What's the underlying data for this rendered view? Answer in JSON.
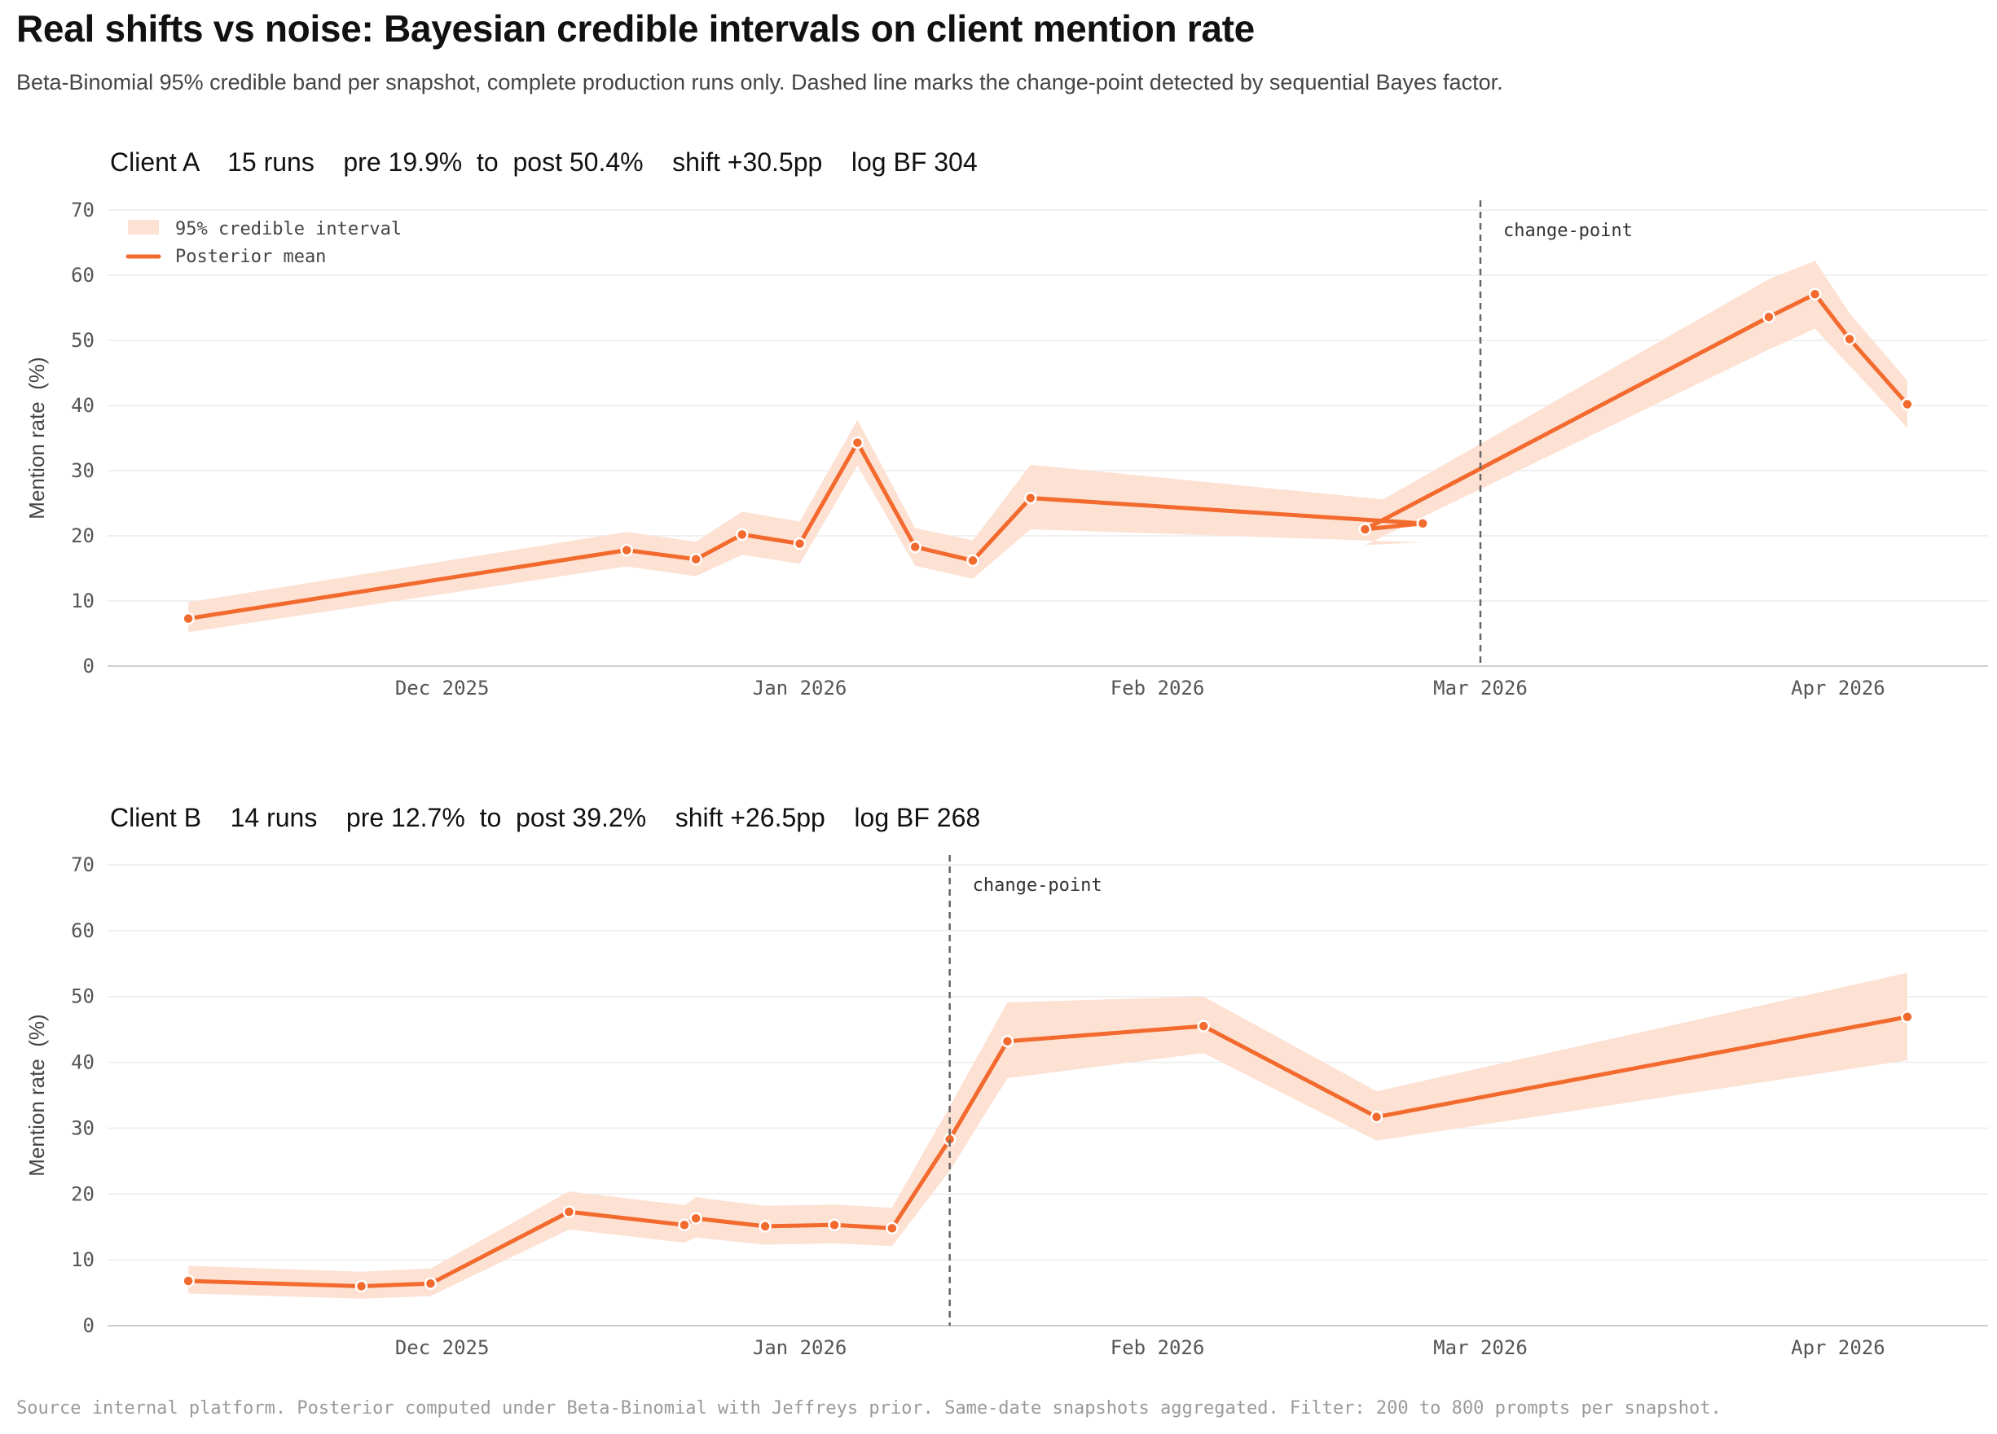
{
  "title": "Real shifts vs noise: Bayesian credible intervals on client mention rate",
  "subtitle": "Beta-Binomial 95% credible band per snapshot, complete production runs only. Dashed line marks the change-point detected by sequential Bayes factor.",
  "source": "Source  internal platform. Posterior computed under Beta-Binomial with Jeffreys prior. Same-date snapshots aggregated. Filter: 200 to 800 prompts per snapshot.",
  "colors": {
    "line": "#F26A2E",
    "band": "#FDE1D3",
    "grid": "#ECECEC",
    "changepoint": "#666666"
  },
  "chart_data": [
    {
      "type": "line",
      "title": "Client A    15 runs    pre 19.9%  to  post 50.4%    shift +30.5pp    log BF 304",
      "ylabel": "Mention rate  (%)",
      "xlabel": "",
      "ylim": [
        0,
        70
      ],
      "yticks": [
        0,
        10,
        20,
        30,
        40,
        50,
        60,
        70
      ],
      "xtick_labels": [
        {
          "date": "2025-12-01",
          "label": "Dec 2025"
        },
        {
          "date": "2026-01-01",
          "label": "Jan 2026"
        },
        {
          "date": "2026-02-01",
          "label": "Feb 2026"
        },
        {
          "date": "2026-03-01",
          "label": "Mar 2026"
        },
        {
          "date": "2026-04-01",
          "label": "Apr 2026"
        }
      ],
      "xlim": [
        "2025-11-02",
        "2026-04-14"
      ],
      "grid": true,
      "legend": {
        "position": "top-left",
        "band_label": "95% credible interval",
        "line_label": "Posterior mean"
      },
      "changepoint": {
        "date": "2026-03-01",
        "label": "change-point"
      },
      "series": [
        {
          "x": [
            "2025-11-09",
            "2025-12-17",
            "2025-12-23",
            "2025-12-27",
            "2026-01-01",
            "2026-01-06",
            "2026-01-11",
            "2026-01-16",
            "2026-01-21",
            "2026-02-24",
            "2026-02-19",
            "2026-03-26",
            "2026-03-30",
            "2026-04-02",
            "2026-04-07"
          ],
          "mean": [
            7.3,
            17.8,
            16.4,
            20.2,
            18.8,
            34.3,
            18.3,
            16.2,
            25.8,
            21.9,
            21.0,
            53.6,
            57.1,
            50.2,
            40.2
          ],
          "lower": [
            5.2,
            15.3,
            13.8,
            17.1,
            15.7,
            30.8,
            15.4,
            13.4,
            21.0,
            19.0,
            18.6,
            48.6,
            51.8,
            46.1,
            36.6
          ],
          "upper": [
            9.8,
            20.6,
            19.1,
            23.7,
            22.2,
            37.8,
            21.2,
            19.3,
            30.9,
            25.0,
            24.0,
            59.4,
            62.2,
            54.2,
            43.8
          ]
        }
      ]
    },
    {
      "type": "line",
      "title": "Client B    14 runs    pre 12.7%  to  post 39.2%    shift +26.5pp    log BF 268",
      "ylabel": "Mention rate  (%)",
      "xlabel": "",
      "ylim": [
        0,
        70
      ],
      "yticks": [
        0,
        10,
        20,
        30,
        40,
        50,
        60,
        70
      ],
      "xtick_labels": [
        {
          "date": "2025-12-01",
          "label": "Dec 2025"
        },
        {
          "date": "2026-01-01",
          "label": "Jan 2026"
        },
        {
          "date": "2026-02-01",
          "label": "Feb 2026"
        },
        {
          "date": "2026-03-01",
          "label": "Mar 2026"
        },
        {
          "date": "2026-04-01",
          "label": "Apr 2026"
        }
      ],
      "xlim": [
        "2025-11-02",
        "2026-04-14"
      ],
      "grid": true,
      "changepoint": {
        "date": "2026-01-14",
        "label": "change-point"
      },
      "series": [
        {
          "x": [
            "2025-11-09",
            "2025-11-24",
            "2025-11-30",
            "2025-12-12",
            "2025-12-22",
            "2025-12-23",
            "2025-12-29",
            "2026-01-04",
            "2026-01-09",
            "2026-01-14",
            "2026-01-19",
            "2026-02-05",
            "2026-02-20",
            "2026-04-07"
          ],
          "mean": [
            6.8,
            6.0,
            6.4,
            17.3,
            15.3,
            16.3,
            15.1,
            15.3,
            14.8,
            28.3,
            43.2,
            45.5,
            31.7,
            46.9
          ],
          "lower": [
            4.9,
            4.1,
            4.5,
            14.6,
            12.6,
            13.4,
            12.3,
            12.5,
            12.1,
            23.5,
            37.6,
            41.4,
            28.1,
            40.3
          ],
          "upper": [
            9.1,
            8.2,
            8.7,
            20.4,
            18.3,
            19.5,
            18.2,
            18.4,
            17.9,
            33.3,
            49.1,
            50.0,
            35.6,
            53.6
          ]
        }
      ]
    }
  ]
}
